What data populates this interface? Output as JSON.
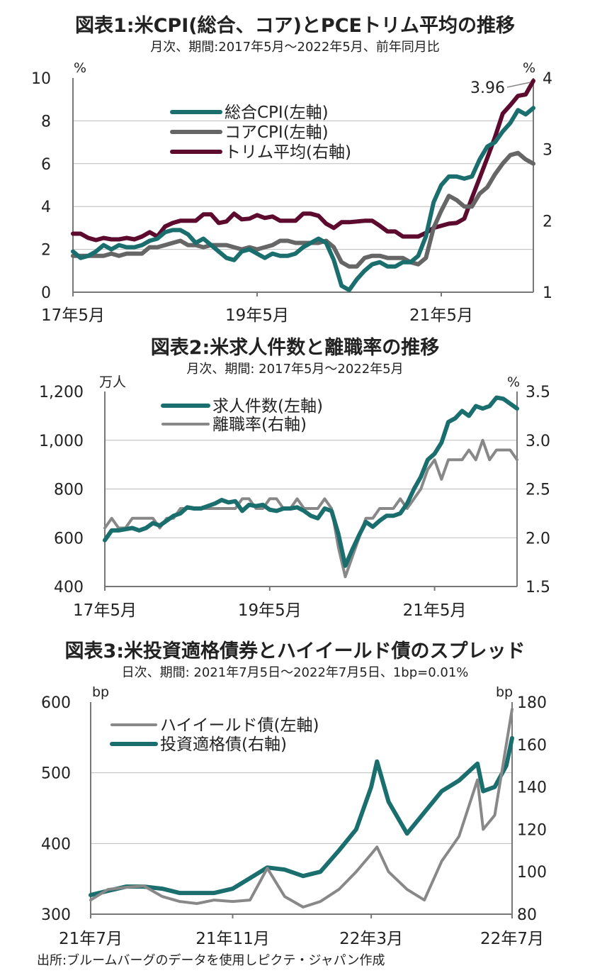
{
  "source": "出所:ブルームバーグのデータを使用しピクテ・ジャパン作成",
  "chart_data": [
    {
      "type": "line",
      "title": "図表1:米CPI(総合、コア)とPCEトリム平均の推移",
      "subtitle": "月次、期間:2017年5月～2022年5月、前年同月比",
      "left_unit": "%",
      "right_unit": "%",
      "ylim_left": [
        0,
        10
      ],
      "ylim_right": [
        1,
        4
      ],
      "yticks_left": [
        "0",
        "2",
        "4",
        "6",
        "8",
        "10"
      ],
      "yticks_right": [
        "1",
        "2",
        "3",
        "4"
      ],
      "xticks": [
        "17年5月",
        "19年5月",
        "21年5月"
      ],
      "grid": true,
      "legend_position": "upper-left",
      "annotation": "3.96",
      "x": [
        "2017-05",
        "2017-06",
        "2017-07",
        "2017-08",
        "2017-09",
        "2017-10",
        "2017-11",
        "2017-12",
        "2018-01",
        "2018-02",
        "2018-03",
        "2018-04",
        "2018-05",
        "2018-06",
        "2018-07",
        "2018-08",
        "2018-09",
        "2018-10",
        "2018-11",
        "2018-12",
        "2019-01",
        "2019-02",
        "2019-03",
        "2019-04",
        "2019-05",
        "2019-06",
        "2019-07",
        "2019-08",
        "2019-09",
        "2019-10",
        "2019-11",
        "2019-12",
        "2020-01",
        "2020-02",
        "2020-03",
        "2020-04",
        "2020-05",
        "2020-06",
        "2020-07",
        "2020-08",
        "2020-09",
        "2020-10",
        "2020-11",
        "2020-12",
        "2021-01",
        "2021-02",
        "2021-03",
        "2021-04",
        "2021-05",
        "2021-06",
        "2021-07",
        "2021-08",
        "2021-09",
        "2021-10",
        "2021-11",
        "2021-12",
        "2022-01",
        "2022-02",
        "2022-03",
        "2022-04",
        "2022-05"
      ],
      "series": [
        {
          "name": "総合CPI(左軸)",
          "axis": "left",
          "color": "#1a6e6e",
          "values": [
            1.9,
            1.6,
            1.7,
            1.9,
            2.2,
            2.0,
            2.2,
            2.1,
            2.1,
            2.2,
            2.4,
            2.5,
            2.8,
            2.9,
            2.9,
            2.7,
            2.3,
            2.5,
            2.2,
            1.9,
            1.6,
            1.5,
            1.9,
            2.0,
            1.8,
            1.6,
            1.8,
            1.7,
            1.7,
            1.8,
            2.1,
            2.3,
            2.5,
            2.3,
            1.5,
            0.3,
            0.1,
            0.6,
            1.0,
            1.3,
            1.4,
            1.2,
            1.2,
            1.4,
            1.4,
            1.7,
            2.6,
            4.2,
            5.0,
            5.4,
            5.4,
            5.3,
            5.4,
            6.2,
            6.8,
            7.0,
            7.5,
            7.9,
            8.5,
            8.3,
            8.6
          ]
        },
        {
          "name": "コアCPI(左軸)",
          "axis": "left",
          "color": "#666666",
          "values": [
            1.7,
            1.7,
            1.7,
            1.7,
            1.7,
            1.8,
            1.7,
            1.8,
            1.8,
            1.8,
            2.1,
            2.1,
            2.2,
            2.3,
            2.4,
            2.2,
            2.2,
            2.1,
            2.2,
            2.2,
            2.2,
            2.1,
            2.0,
            2.1,
            2.0,
            2.1,
            2.2,
            2.4,
            2.4,
            2.3,
            2.3,
            2.3,
            2.3,
            2.4,
            2.1,
            1.4,
            1.2,
            1.2,
            1.6,
            1.7,
            1.7,
            1.6,
            1.6,
            1.6,
            1.4,
            1.3,
            1.6,
            3.0,
            3.8,
            4.5,
            4.3,
            4.0,
            4.0,
            4.6,
            4.9,
            5.5,
            6.0,
            6.4,
            6.5,
            6.2,
            6.0
          ]
        },
        {
          "name": "トリム平均(右軸)",
          "axis": "right",
          "color": "#5c0a2e",
          "values": [
            1.82,
            1.82,
            1.76,
            1.73,
            1.76,
            1.74,
            1.74,
            1.76,
            1.74,
            1.78,
            1.84,
            1.78,
            1.92,
            1.97,
            2.0,
            2.0,
            2.0,
            2.09,
            2.09,
            1.97,
            1.99,
            2.1,
            2.02,
            2.03,
            2.08,
            2.04,
            2.06,
            2.0,
            2.0,
            2.0,
            2.1,
            2.1,
            2.07,
            1.96,
            1.9,
            1.98,
            1.98,
            1.99,
            2.0,
            2.0,
            1.93,
            1.85,
            1.85,
            1.78,
            1.78,
            1.78,
            1.83,
            1.9,
            1.93,
            1.96,
            1.97,
            2.03,
            2.32,
            2.6,
            2.88,
            3.17,
            3.5,
            3.62,
            3.75,
            3.77,
            3.96
          ]
        }
      ]
    },
    {
      "type": "line",
      "title": "図表2:米求人件数と離職率の推移",
      "subtitle": "月次、期間: 2017年5月～2022年5月",
      "left_unit": "万人",
      "right_unit": "%",
      "ylim_left": [
        400,
        1200
      ],
      "ylim_right": [
        1.5,
        3.5
      ],
      "yticks_left": [
        "400",
        "600",
        "800",
        "1,000",
        "1,200"
      ],
      "yticks_right": [
        "1.5",
        "2.0",
        "2.5",
        "3.0",
        "3.5"
      ],
      "xticks": [
        "17年5月",
        "19年5月",
        "21年5月"
      ],
      "grid": true,
      "legend_position": "upper-left",
      "x": [
        "2017-05",
        "2017-06",
        "2017-07",
        "2017-08",
        "2017-09",
        "2017-10",
        "2017-11",
        "2017-12",
        "2018-01",
        "2018-02",
        "2018-03",
        "2018-04",
        "2018-05",
        "2018-06",
        "2018-07",
        "2018-08",
        "2018-09",
        "2018-10",
        "2018-11",
        "2018-12",
        "2019-01",
        "2019-02",
        "2019-03",
        "2019-04",
        "2019-05",
        "2019-06",
        "2019-07",
        "2019-08",
        "2019-09",
        "2019-10",
        "2019-11",
        "2019-12",
        "2020-01",
        "2020-02",
        "2020-03",
        "2020-04",
        "2020-05",
        "2020-06",
        "2020-07",
        "2020-08",
        "2020-09",
        "2020-10",
        "2020-11",
        "2020-12",
        "2021-01",
        "2021-02",
        "2021-03",
        "2021-04",
        "2021-05",
        "2021-06",
        "2021-07",
        "2021-08",
        "2021-09",
        "2021-10",
        "2021-11",
        "2021-12",
        "2022-01",
        "2022-02",
        "2022-03",
        "2022-04",
        "2022-05"
      ],
      "series": [
        {
          "name": "求人件数(左軸)",
          "axis": "left",
          "color": "#1a6e6e",
          "values": [
            590,
            630,
            630,
            635,
            640,
            630,
            640,
            660,
            650,
            670,
            690,
            700,
            725,
            720,
            720,
            730,
            740,
            755,
            745,
            750,
            710,
            735,
            730,
            735,
            715,
            710,
            720,
            720,
            725,
            710,
            690,
            680,
            720,
            710,
            615,
            485,
            550,
            610,
            665,
            645,
            670,
            690,
            690,
            700,
            740,
            800,
            850,
            920,
            945,
            990,
            1075,
            1090,
            1120,
            1100,
            1140,
            1130,
            1140,
            1175,
            1170,
            1150,
            1130
          ]
        },
        {
          "name": "離職率(右軸)",
          "axis": "right",
          "color": "#888888",
          "values": [
            2.1,
            2.2,
            2.1,
            2.1,
            2.2,
            2.2,
            2.2,
            2.2,
            2.1,
            2.2,
            2.2,
            2.3,
            2.3,
            2.3,
            2.3,
            2.3,
            2.3,
            2.3,
            2.3,
            2.3,
            2.4,
            2.4,
            2.3,
            2.3,
            2.4,
            2.4,
            2.3,
            2.3,
            2.4,
            2.3,
            2.3,
            2.3,
            2.4,
            2.3,
            1.9,
            1.6,
            1.8,
            2.0,
            2.2,
            2.2,
            2.3,
            2.3,
            2.3,
            2.4,
            2.3,
            2.4,
            2.5,
            2.7,
            2.8,
            2.6,
            2.8,
            2.8,
            2.8,
            2.9,
            2.8,
            3.0,
            2.8,
            2.9,
            2.9,
            2.9,
            2.8
          ]
        }
      ]
    },
    {
      "type": "line",
      "title": "図表3:米投資適格債券とハイイールド債のスプレッド",
      "subtitle": "日次、期間: 2021年7月5日～2022年7月5日、1bp=0.01%",
      "left_unit": "bp",
      "right_unit": "bp",
      "ylim_left": [
        300,
        600
      ],
      "ylim_right": [
        80,
        180
      ],
      "yticks_left": [
        "300",
        "400",
        "500",
        "600"
      ],
      "yticks_right": [
        "80",
        "100",
        "120",
        "140",
        "160",
        "180"
      ],
      "xticks": [
        "21年7月",
        "21年11月",
        "22年3月",
        "22年7月"
      ],
      "grid": true,
      "legend_position": "upper-left",
      "x": [
        "2021-07-05",
        "2021-07-20",
        "2021-08-05",
        "2021-08-20",
        "2021-09-05",
        "2021-09-20",
        "2021-10-05",
        "2021-10-20",
        "2021-11-05",
        "2021-11-20",
        "2021-12-05",
        "2021-12-20",
        "2022-01-05",
        "2022-01-20",
        "2022-02-05",
        "2022-02-20",
        "2022-03-05",
        "2022-03-10",
        "2022-03-20",
        "2022-04-05",
        "2022-04-20",
        "2022-05-05",
        "2022-05-20",
        "2022-06-05",
        "2022-06-10",
        "2022-06-20",
        "2022-06-30",
        "2022-07-05"
      ],
      "series": [
        {
          "name": "ハイイールド債(左軸)",
          "axis": "left",
          "color": "#888888",
          "values": [
            320,
            335,
            338,
            340,
            325,
            318,
            315,
            320,
            318,
            320,
            365,
            325,
            310,
            318,
            335,
            360,
            385,
            395,
            360,
            335,
            320,
            375,
            410,
            490,
            420,
            440,
            540,
            590
          ]
        },
        {
          "name": "投資適格債(右軸)",
          "axis": "right",
          "color": "#1a6e6e",
          "values": [
            89,
            91,
            93,
            93,
            92,
            90,
            90,
            90,
            92,
            97,
            102,
            101,
            98,
            100,
            110,
            120,
            140,
            152,
            133,
            118,
            128,
            138,
            143,
            151,
            138,
            140,
            150,
            163
          ]
        }
      ]
    }
  ]
}
